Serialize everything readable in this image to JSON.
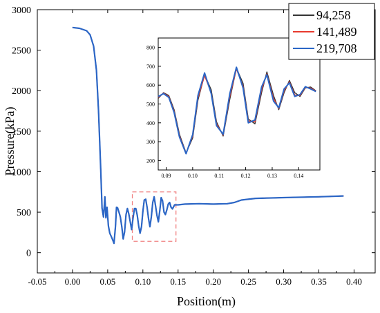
{
  "chart_data": [
    {
      "type": "line",
      "title": "",
      "xlabel": "Position(m)",
      "ylabel": "Pressure(kPa)",
      "xlim": [
        -0.05,
        0.43
      ],
      "ylim": [
        -250,
        3000
      ],
      "xticks": [
        -0.05,
        0.0,
        0.05,
        0.1,
        0.15,
        0.2,
        0.25,
        0.3,
        0.35,
        0.4
      ],
      "xtick_labels": [
        "-0.05",
        "0.00",
        "0.05",
        "0.10",
        "0.15",
        "0.20",
        "0.25",
        "0.30",
        "0.35",
        "0.40"
      ],
      "yticks": [
        0,
        500,
        1000,
        1500,
        2000,
        2500,
        3000
      ],
      "ytick_labels": [
        "0",
        "500",
        "1000",
        "1500",
        "2000",
        "2500",
        "3000"
      ],
      "grid": false,
      "legend": "top-right",
      "annotation_box": {
        "x": [
          0.085,
          0.147
        ],
        "y": [
          140,
          750
        ],
        "style": "dashed",
        "color": "#f08080"
      },
      "series": [
        {
          "name": "94,258",
          "color": "#333333",
          "x": [
            0.0,
            0.01,
            0.02,
            0.025,
            0.03,
            0.034,
            0.037,
            0.04,
            0.042,
            0.044,
            0.046,
            0.0475,
            0.049,
            0.051,
            0.053,
            0.055,
            0.057,
            0.059,
            0.061,
            0.0625,
            0.064,
            0.066,
            0.068,
            0.07,
            0.072,
            0.074,
            0.076,
            0.078,
            0.08,
            0.082,
            0.084,
            0.086,
            0.088,
            0.09,
            0.092,
            0.094,
            0.096,
            0.098,
            0.1,
            0.102,
            0.104,
            0.106,
            0.108,
            0.11,
            0.112,
            0.114,
            0.116,
            0.118,
            0.12,
            0.122,
            0.124,
            0.126,
            0.128,
            0.13,
            0.132,
            0.134,
            0.136,
            0.138,
            0.14,
            0.142,
            0.145,
            0.15,
            0.16,
            0.18,
            0.2,
            0.22,
            0.23,
            0.24,
            0.26,
            0.3,
            0.35,
            0.385
          ],
          "values": [
            2780,
            2770,
            2740,
            2690,
            2550,
            2250,
            1750,
            1050,
            550,
            440,
            690,
            430,
            560,
            330,
            240,
            200,
            160,
            115,
            320,
            560,
            555,
            500,
            440,
            320,
            170,
            255,
            470,
            545,
            480,
            380,
            285,
            430,
            545,
            545,
            460,
            330,
            240,
            320,
            510,
            650,
            660,
            560,
            420,
            320,
            440,
            620,
            690,
            580,
            460,
            380,
            520,
            680,
            640,
            500,
            470,
            530,
            600,
            620,
            560,
            540,
            590,
            590,
            600,
            605,
            600,
            605,
            620,
            650,
            670,
            680,
            690,
            700
          ]
        },
        {
          "name": "141,489",
          "color": "#e8392d",
          "x": [
            0.0,
            0.01,
            0.02,
            0.025,
            0.03,
            0.034,
            0.037,
            0.04,
            0.042,
            0.044,
            0.046,
            0.0475,
            0.049,
            0.051,
            0.053,
            0.055,
            0.057,
            0.059,
            0.061,
            0.0625,
            0.064,
            0.066,
            0.068,
            0.07,
            0.072,
            0.074,
            0.076,
            0.078,
            0.08,
            0.082,
            0.084,
            0.086,
            0.088,
            0.09,
            0.092,
            0.094,
            0.096,
            0.098,
            0.1,
            0.102,
            0.104,
            0.106,
            0.108,
            0.11,
            0.112,
            0.114,
            0.116,
            0.118,
            0.12,
            0.122,
            0.124,
            0.126,
            0.128,
            0.13,
            0.132,
            0.134,
            0.136,
            0.138,
            0.14,
            0.142,
            0.145,
            0.15,
            0.16,
            0.18,
            0.2,
            0.22,
            0.23,
            0.24,
            0.26,
            0.3,
            0.35,
            0.385
          ],
          "values": [
            2780,
            2770,
            2740,
            2690,
            2550,
            2250,
            1750,
            1050,
            550,
            440,
            690,
            430,
            560,
            330,
            240,
            200,
            160,
            115,
            320,
            560,
            555,
            500,
            440,
            320,
            170,
            255,
            470,
            545,
            480,
            380,
            285,
            430,
            545,
            545,
            460,
            330,
            240,
            320,
            510,
            650,
            660,
            560,
            420,
            320,
            440,
            620,
            690,
            580,
            460,
            380,
            520,
            680,
            640,
            500,
            470,
            530,
            600,
            620,
            560,
            540,
            590,
            590,
            600,
            605,
            600,
            605,
            620,
            650,
            670,
            680,
            690,
            700
          ]
        },
        {
          "name": "219,708",
          "color": "#2b66c6",
          "x": [
            0.0,
            0.01,
            0.02,
            0.025,
            0.03,
            0.034,
            0.037,
            0.04,
            0.042,
            0.044,
            0.046,
            0.0475,
            0.049,
            0.051,
            0.053,
            0.055,
            0.057,
            0.059,
            0.061,
            0.0625,
            0.064,
            0.066,
            0.068,
            0.07,
            0.072,
            0.074,
            0.076,
            0.078,
            0.08,
            0.082,
            0.084,
            0.086,
            0.088,
            0.09,
            0.092,
            0.094,
            0.096,
            0.098,
            0.1,
            0.102,
            0.104,
            0.106,
            0.108,
            0.11,
            0.112,
            0.114,
            0.116,
            0.118,
            0.12,
            0.122,
            0.124,
            0.126,
            0.128,
            0.13,
            0.132,
            0.134,
            0.136,
            0.138,
            0.14,
            0.142,
            0.145,
            0.15,
            0.16,
            0.18,
            0.2,
            0.22,
            0.23,
            0.24,
            0.26,
            0.3,
            0.35,
            0.385
          ],
          "values": [
            2780,
            2770,
            2740,
            2690,
            2550,
            2250,
            1750,
            1050,
            550,
            440,
            690,
            430,
            560,
            330,
            240,
            200,
            160,
            115,
            320,
            560,
            555,
            500,
            440,
            320,
            170,
            255,
            470,
            545,
            480,
            380,
            285,
            430,
            545,
            545,
            460,
            330,
            240,
            320,
            510,
            650,
            660,
            560,
            420,
            320,
            440,
            620,
            690,
            580,
            460,
            380,
            520,
            680,
            640,
            500,
            470,
            530,
            600,
            620,
            560,
            540,
            590,
            590,
            600,
            605,
            600,
            605,
            620,
            650,
            670,
            680,
            690,
            700
          ]
        }
      ]
    },
    {
      "type": "line",
      "title": "",
      "xlabel": "",
      "ylabel": "",
      "xlim": [
        0.087,
        0.148
      ],
      "ylim": [
        150,
        850
      ],
      "xticks": [
        0.09,
        0.1,
        0.11,
        0.12,
        0.13,
        0.14
      ],
      "xtick_labels": [
        "0.09",
        "0.10",
        "0.11",
        "0.12",
        "0.13",
        "0.14"
      ],
      "yticks": [
        200,
        300,
        400,
        500,
        600,
        700,
        800
      ],
      "ytick_labels": [
        "200",
        "300",
        "400",
        "500",
        "600",
        "700",
        "800"
      ],
      "grid": false,
      "legend": "none",
      "series": [
        {
          "name": "94,258",
          "color": "#333333",
          "x": [
            0.087,
            0.089,
            0.091,
            0.093,
            0.095,
            0.0975,
            0.1,
            0.102,
            0.1045,
            0.107,
            0.109,
            0.1115,
            0.114,
            0.1165,
            0.119,
            0.121,
            0.1235,
            0.126,
            0.128,
            0.1305,
            0.1325,
            0.1345,
            0.1365,
            0.1385,
            0.1405,
            0.1425,
            0.1445,
            0.1465
          ],
          "values": [
            530,
            560,
            545,
            470,
            340,
            240,
            320,
            520,
            655,
            575,
            405,
            330,
            525,
            690,
            610,
            420,
            395,
            560,
            670,
            545,
            470,
            560,
            625,
            560,
            540,
            585,
            590,
            570
          ]
        },
        {
          "name": "141,489",
          "color": "#e8392d",
          "x": [
            0.087,
            0.089,
            0.091,
            0.093,
            0.095,
            0.0975,
            0.1,
            0.102,
            0.1045,
            0.107,
            0.109,
            0.1115,
            0.114,
            0.1165,
            0.119,
            0.121,
            0.1235,
            0.126,
            0.128,
            0.1305,
            0.1325,
            0.1345,
            0.1365,
            0.1385,
            0.1405,
            0.1425,
            0.1445,
            0.1465
          ],
          "values": [
            535,
            558,
            540,
            462,
            332,
            238,
            330,
            532,
            650,
            560,
            395,
            335,
            540,
            685,
            595,
            410,
            405,
            575,
            660,
            530,
            475,
            570,
            618,
            548,
            545,
            588,
            585,
            568
          ]
        },
        {
          "name": "219,708",
          "color": "#2b66c6",
          "x": [
            0.087,
            0.089,
            0.091,
            0.093,
            0.095,
            0.0975,
            0.1,
            0.102,
            0.1045,
            0.107,
            0.109,
            0.1115,
            0.114,
            0.1165,
            0.119,
            0.121,
            0.1235,
            0.126,
            0.128,
            0.1305,
            0.1325,
            0.1345,
            0.1365,
            0.1385,
            0.1405,
            0.1425,
            0.1445,
            0.1465
          ],
          "values": [
            540,
            555,
            535,
            455,
            325,
            236,
            338,
            545,
            665,
            555,
            385,
            340,
            555,
            695,
            585,
            400,
            415,
            590,
            655,
            515,
            480,
            580,
            612,
            540,
            550,
            592,
            580,
            566
          ]
        }
      ]
    }
  ]
}
